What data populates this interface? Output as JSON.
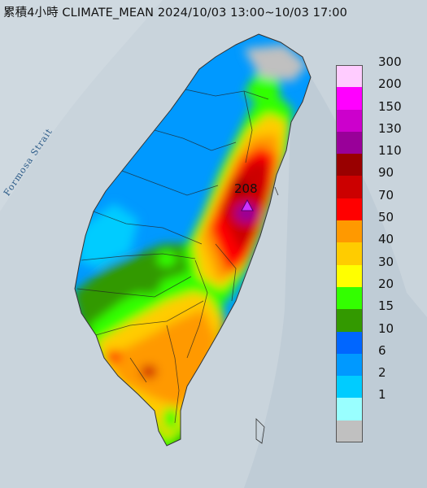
{
  "title": "累積4小時 CLIMATE_MEAN 2024/10/03 13:00~10/03 17:00",
  "strait_label": "Formosa Strait",
  "max_value": "208",
  "legend": [
    {
      "label": "300",
      "color": "#ffccff"
    },
    {
      "label": "200",
      "color": "#ff00ff"
    },
    {
      "label": "150",
      "color": "#cc00cc"
    },
    {
      "label": "130",
      "color": "#990099"
    },
    {
      "label": "110",
      "color": "#990000"
    },
    {
      "label": "90",
      "color": "#cc0000"
    },
    {
      "label": "70",
      "color": "#ff0000"
    },
    {
      "label": "50",
      "color": "#ff9900"
    },
    {
      "label": "40",
      "color": "#ffcc00"
    },
    {
      "label": "30",
      "color": "#ffff00"
    },
    {
      "label": "20",
      "color": "#33ff00"
    },
    {
      "label": "15",
      "color": "#339900"
    },
    {
      "label": "10",
      "color": "#0066ff"
    },
    {
      "label": "6",
      "color": "#0099ff"
    },
    {
      "label": "2",
      "color": "#00ccff"
    },
    {
      "label": "1",
      "color": "#99ffff"
    },
    {
      "label": "",
      "color": "#c0c0c0"
    }
  ]
}
